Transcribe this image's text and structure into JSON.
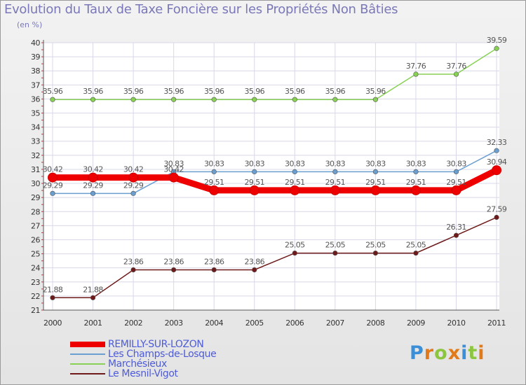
{
  "title": "Evolution du Taux de Taxe Foncière sur les Propriétés Non Bâties",
  "unit_label": "(en %)",
  "logo_text": "Proxiti",
  "colors": {
    "title": "#7a78b8",
    "legend_text": "#4d5bd8",
    "grid": "#d8d8e8"
  },
  "chart_data": {
    "type": "line",
    "title": "Evolution du Taux de Taxe Foncière sur les Propriétés Non Bâties",
    "ylabel": "(en %)",
    "xlabel": "",
    "ylim": [
      21,
      40
    ],
    "yticks": [
      21,
      22,
      23,
      24,
      25,
      26,
      27,
      28,
      29,
      30,
      31,
      32,
      33,
      34,
      35,
      36,
      37,
      38,
      39,
      40
    ],
    "categories": [
      "2000",
      "2001",
      "2002",
      "2003",
      "2004",
      "2005",
      "2006",
      "2007",
      "2008",
      "2009",
      "2010",
      "2011"
    ],
    "grid": true,
    "legend_position": "bottom-left",
    "series": [
      {
        "name": "REMILLY-SUR-LOZON",
        "color": "#ee0000",
        "highlight": true,
        "values": [
          30.42,
          30.42,
          30.42,
          30.42,
          29.51,
          29.51,
          29.51,
          29.51,
          29.51,
          29.51,
          29.51,
          30.94
        ],
        "labels": [
          "30.42",
          "30.42",
          "30.42",
          "30.42",
          "29.51",
          "29.51",
          "29.51",
          "29.51",
          "29.51",
          "29.51",
          "29.51",
          "30.94"
        ]
      },
      {
        "name": "Les Champs-de-Losque",
        "color": "#6a9fd0",
        "highlight": false,
        "values": [
          29.29,
          29.29,
          29.29,
          30.83,
          30.83,
          30.83,
          30.83,
          30.83,
          30.83,
          30.83,
          30.83,
          32.33
        ],
        "labels": [
          "29.29",
          "29.29",
          "29.29",
          "30.83",
          "30.83",
          "30.83",
          "30.83",
          "30.83",
          "30.83",
          "30.83",
          "30.83",
          "32.33"
        ]
      },
      {
        "name": "Marchésieux",
        "color": "#88d155",
        "highlight": false,
        "values": [
          35.96,
          35.96,
          35.96,
          35.96,
          35.96,
          35.96,
          35.96,
          35.96,
          35.96,
          37.76,
          37.76,
          39.59
        ],
        "labels": [
          "35.96",
          "35.96",
          "35.96",
          "35.96",
          "35.96",
          "35.96",
          "35.96",
          "35.96",
          "35.96",
          "37.76",
          "37.76",
          "39.59"
        ]
      },
      {
        "name": "Le Mesnil-Vigot",
        "color": "#6e1a1a",
        "highlight": false,
        "values": [
          21.88,
          21.88,
          23.86,
          23.86,
          23.86,
          23.86,
          25.05,
          25.05,
          25.05,
          25.05,
          26.31,
          27.59
        ],
        "labels": [
          "21.88",
          "21.88",
          "23.86",
          "23.86",
          "23.86",
          "23.86",
          "25.05",
          "25.05",
          "25.05",
          "25.05",
          "26.31",
          "27.59"
        ]
      }
    ]
  }
}
